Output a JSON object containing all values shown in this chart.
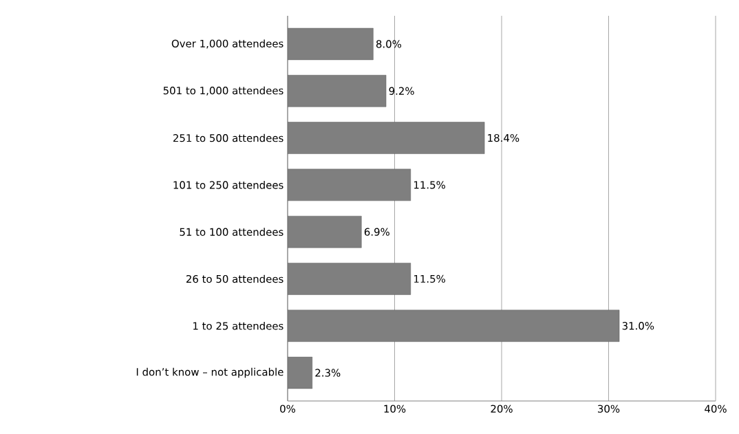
{
  "chart_data": {
    "type": "bar",
    "orientation": "horizontal",
    "categories": [
      "Over 1,000 attendees",
      "501 to 1,000 attendees",
      "251 to 500 attendees",
      "101 to 250 attendees",
      "51 to 100 attendees",
      "26 to 50 attendees",
      "1 to 25 attendees",
      "I don’t know – not applicable"
    ],
    "values": [
      8.0,
      9.2,
      18.4,
      11.5,
      6.9,
      11.5,
      31.0,
      2.3
    ],
    "value_labels": [
      "8.0%",
      "9.2%",
      "18.4%",
      "11.5%",
      "6.9%",
      "11.5%",
      "31.0%",
      "2.3%"
    ],
    "color": "#7f7f7f",
    "xlim": [
      0,
      40
    ],
    "xticks": [
      {
        "value": 0,
        "label": "0%"
      },
      {
        "value": 10,
        "label": "10%"
      },
      {
        "value": 20,
        "label": "20%"
      },
      {
        "value": 30,
        "label": "30%"
      },
      {
        "value": 40,
        "label": "40%"
      }
    ],
    "grid": "x"
  }
}
